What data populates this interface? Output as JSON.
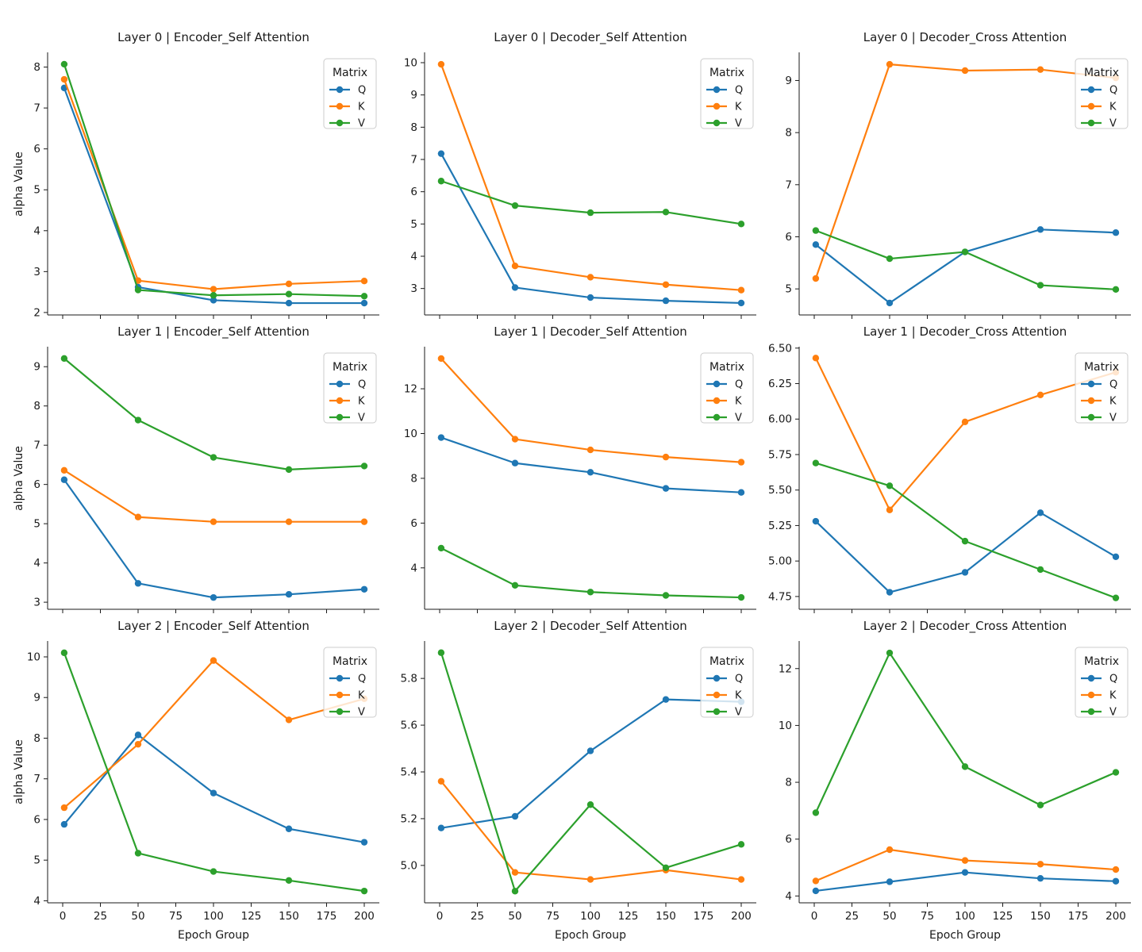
{
  "figure": {
    "ylabel": "alpha Value",
    "xlabel": "Epoch Group",
    "legend_title": "Matrix",
    "colors": {
      "Q": "#1f77b4",
      "K": "#ff7f0e",
      "V": "#2ca02c"
    },
    "x_ticks": [
      "0",
      "25",
      "50",
      "75",
      "100",
      "125",
      "150",
      "175",
      "200"
    ]
  },
  "chart_data": [
    {
      "type": "line",
      "title": "Layer 0 | Encoder_Self Attention",
      "xlabel": "Epoch Group",
      "ylabel": "alpha Value",
      "x": [
        1,
        50,
        100,
        150,
        200
      ],
      "xlim": [
        -10,
        210
      ],
      "ylim": [
        1.94,
        8.36
      ],
      "grid": false,
      "legend_position": "upper right",
      "yticks": [
        "2",
        "3",
        "4",
        "5",
        "6",
        "7",
        "8"
      ],
      "series": [
        {
          "name": "Q",
          "values": [
            7.49,
            2.62,
            2.3,
            2.23,
            2.23
          ]
        },
        {
          "name": "K",
          "values": [
            7.7,
            2.78,
            2.57,
            2.7,
            2.77
          ]
        },
        {
          "name": "V",
          "values": [
            8.07,
            2.55,
            2.42,
            2.45,
            2.4
          ]
        }
      ]
    },
    {
      "type": "line",
      "title": "Layer 0 | Decoder_Self Attention",
      "xlabel": "Epoch Group",
      "ylabel": "alpha Value",
      "x": [
        1,
        50,
        100,
        150,
        200
      ],
      "xlim": [
        -10,
        210
      ],
      "ylim": [
        2.18,
        10.32
      ],
      "grid": false,
      "legend_position": "upper right",
      "yticks": [
        "3",
        "4",
        "5",
        "6",
        "7",
        "8",
        "9",
        "10"
      ],
      "series": [
        {
          "name": "Q",
          "values": [
            7.18,
            3.03,
            2.72,
            2.62,
            2.55
          ]
        },
        {
          "name": "K",
          "values": [
            9.95,
            3.7,
            3.35,
            3.12,
            2.95
          ]
        },
        {
          "name": "V",
          "values": [
            6.33,
            5.57,
            5.35,
            5.37,
            5.0
          ]
        }
      ]
    },
    {
      "type": "line",
      "title": "Layer 0 | Decoder_Cross Attention",
      "xlabel": "Epoch Group",
      "ylabel": "alpha Value",
      "x": [
        1,
        50,
        100,
        150,
        200
      ],
      "xlim": [
        -10,
        210
      ],
      "ylim": [
        4.5,
        9.54
      ],
      "grid": false,
      "legend_position": "upper right",
      "yticks": [
        "5",
        "6",
        "7",
        "8",
        "9"
      ],
      "series": [
        {
          "name": "Q",
          "values": [
            5.85,
            4.73,
            5.71,
            6.14,
            6.08
          ]
        },
        {
          "name": "K",
          "values": [
            5.2,
            9.31,
            9.19,
            9.21,
            9.05
          ]
        },
        {
          "name": "V",
          "values": [
            6.12,
            5.58,
            5.71,
            5.07,
            4.99
          ]
        }
      ]
    },
    {
      "type": "line",
      "title": "Layer 1 | Encoder_Self Attention",
      "xlabel": "Epoch Group",
      "ylabel": "alpha Value",
      "x": [
        1,
        50,
        100,
        150,
        200
      ],
      "xlim": [
        -10,
        210
      ],
      "ylim": [
        2.82,
        9.51
      ],
      "grid": false,
      "legend_position": "upper right",
      "yticks": [
        "3",
        "4",
        "5",
        "6",
        "7",
        "8",
        "9"
      ],
      "series": [
        {
          "name": "Q",
          "values": [
            6.12,
            3.48,
            3.12,
            3.2,
            3.33
          ]
        },
        {
          "name": "K",
          "values": [
            6.36,
            5.17,
            5.05,
            5.05,
            5.05
          ]
        },
        {
          "name": "V",
          "values": [
            9.21,
            7.64,
            6.69,
            6.38,
            6.47
          ]
        }
      ]
    },
    {
      "type": "line",
      "title": "Layer 1 | Decoder_Self Attention",
      "xlabel": "Epoch Group",
      "ylabel": "alpha Value",
      "x": [
        1,
        50,
        100,
        150,
        200
      ],
      "xlim": [
        -10,
        210
      ],
      "ylim": [
        2.15,
        13.88
      ],
      "grid": false,
      "legend_position": "upper right",
      "yticks": [
        "4",
        "6",
        "8",
        "10",
        "12"
      ],
      "series": [
        {
          "name": "Q",
          "values": [
            9.82,
            8.68,
            8.27,
            7.55,
            7.37
          ]
        },
        {
          "name": "K",
          "values": [
            13.35,
            9.75,
            9.27,
            8.95,
            8.72
          ]
        },
        {
          "name": "V",
          "values": [
            4.88,
            3.22,
            2.92,
            2.77,
            2.68
          ]
        }
      ]
    },
    {
      "type": "line",
      "title": "Layer 1 | Decoder_Cross Attention",
      "xlabel": "Epoch Group",
      "ylabel": "alpha Value",
      "x": [
        1,
        50,
        100,
        150,
        200
      ],
      "xlim": [
        -10,
        210
      ],
      "ylim": [
        4.66,
        6.51
      ],
      "grid": false,
      "legend_position": "upper right",
      "yticks": [
        "4.75",
        "5.00",
        "5.25",
        "5.50",
        "5.75",
        "6.00",
        "6.25",
        "6.50"
      ],
      "series": [
        {
          "name": "Q",
          "values": [
            5.28,
            4.78,
            4.92,
            5.34,
            5.03
          ]
        },
        {
          "name": "K",
          "values": [
            6.43,
            5.36,
            5.98,
            6.17,
            6.33
          ]
        },
        {
          "name": "V",
          "values": [
            5.69,
            5.53,
            5.14,
            4.94,
            4.74
          ]
        }
      ]
    },
    {
      "type": "line",
      "title": "Layer 2 | Encoder_Self Attention",
      "xlabel": "Epoch Group",
      "ylabel": "alpha Value",
      "x": [
        1,
        50,
        100,
        150,
        200
      ],
      "xlim": [
        -10,
        210
      ],
      "ylim": [
        3.95,
        10.39
      ],
      "grid": false,
      "legend_position": "upper right",
      "yticks": [
        "4",
        "5",
        "6",
        "7",
        "8",
        "9",
        "10"
      ],
      "series": [
        {
          "name": "Q",
          "values": [
            5.88,
            8.08,
            6.65,
            5.77,
            5.44
          ]
        },
        {
          "name": "K",
          "values": [
            6.29,
            7.85,
            9.91,
            8.45,
            8.97
          ]
        },
        {
          "name": "V",
          "values": [
            10.1,
            5.17,
            4.72,
            4.5,
            4.24
          ]
        }
      ]
    },
    {
      "type": "line",
      "title": "Layer 2 | Decoder_Self Attention",
      "xlabel": "Epoch Group",
      "ylabel": "alpha Value",
      "x": [
        1,
        50,
        100,
        150,
        200
      ],
      "xlim": [
        -10,
        210
      ],
      "ylim": [
        4.84,
        5.96
      ],
      "grid": false,
      "legend_position": "upper right",
      "yticks": [
        "5.0",
        "5.2",
        "5.4",
        "5.6",
        "5.8"
      ],
      "series": [
        {
          "name": "Q",
          "values": [
            5.16,
            5.21,
            5.49,
            5.71,
            5.7
          ]
        },
        {
          "name": "K",
          "values": [
            5.36,
            4.97,
            4.94,
            4.98,
            4.94
          ]
        },
        {
          "name": "V",
          "values": [
            5.91,
            4.89,
            5.26,
            4.99,
            5.09
          ]
        }
      ]
    },
    {
      "type": "line",
      "title": "Layer 2 | Decoder_Cross Attention",
      "xlabel": "Epoch Group",
      "ylabel": "alpha Value",
      "x": [
        1,
        50,
        100,
        150,
        200
      ],
      "xlim": [
        -10,
        210
      ],
      "ylim": [
        3.76,
        12.97
      ],
      "grid": false,
      "legend_position": "upper right",
      "yticks": [
        "4",
        "6",
        "8",
        "10",
        "12"
      ],
      "series": [
        {
          "name": "Q",
          "values": [
            4.18,
            4.5,
            4.83,
            4.62,
            4.52
          ]
        },
        {
          "name": "K",
          "values": [
            4.53,
            5.63,
            5.25,
            5.12,
            4.93
          ]
        },
        {
          "name": "V",
          "values": [
            6.93,
            12.55,
            8.55,
            7.2,
            8.35
          ]
        }
      ]
    }
  ]
}
